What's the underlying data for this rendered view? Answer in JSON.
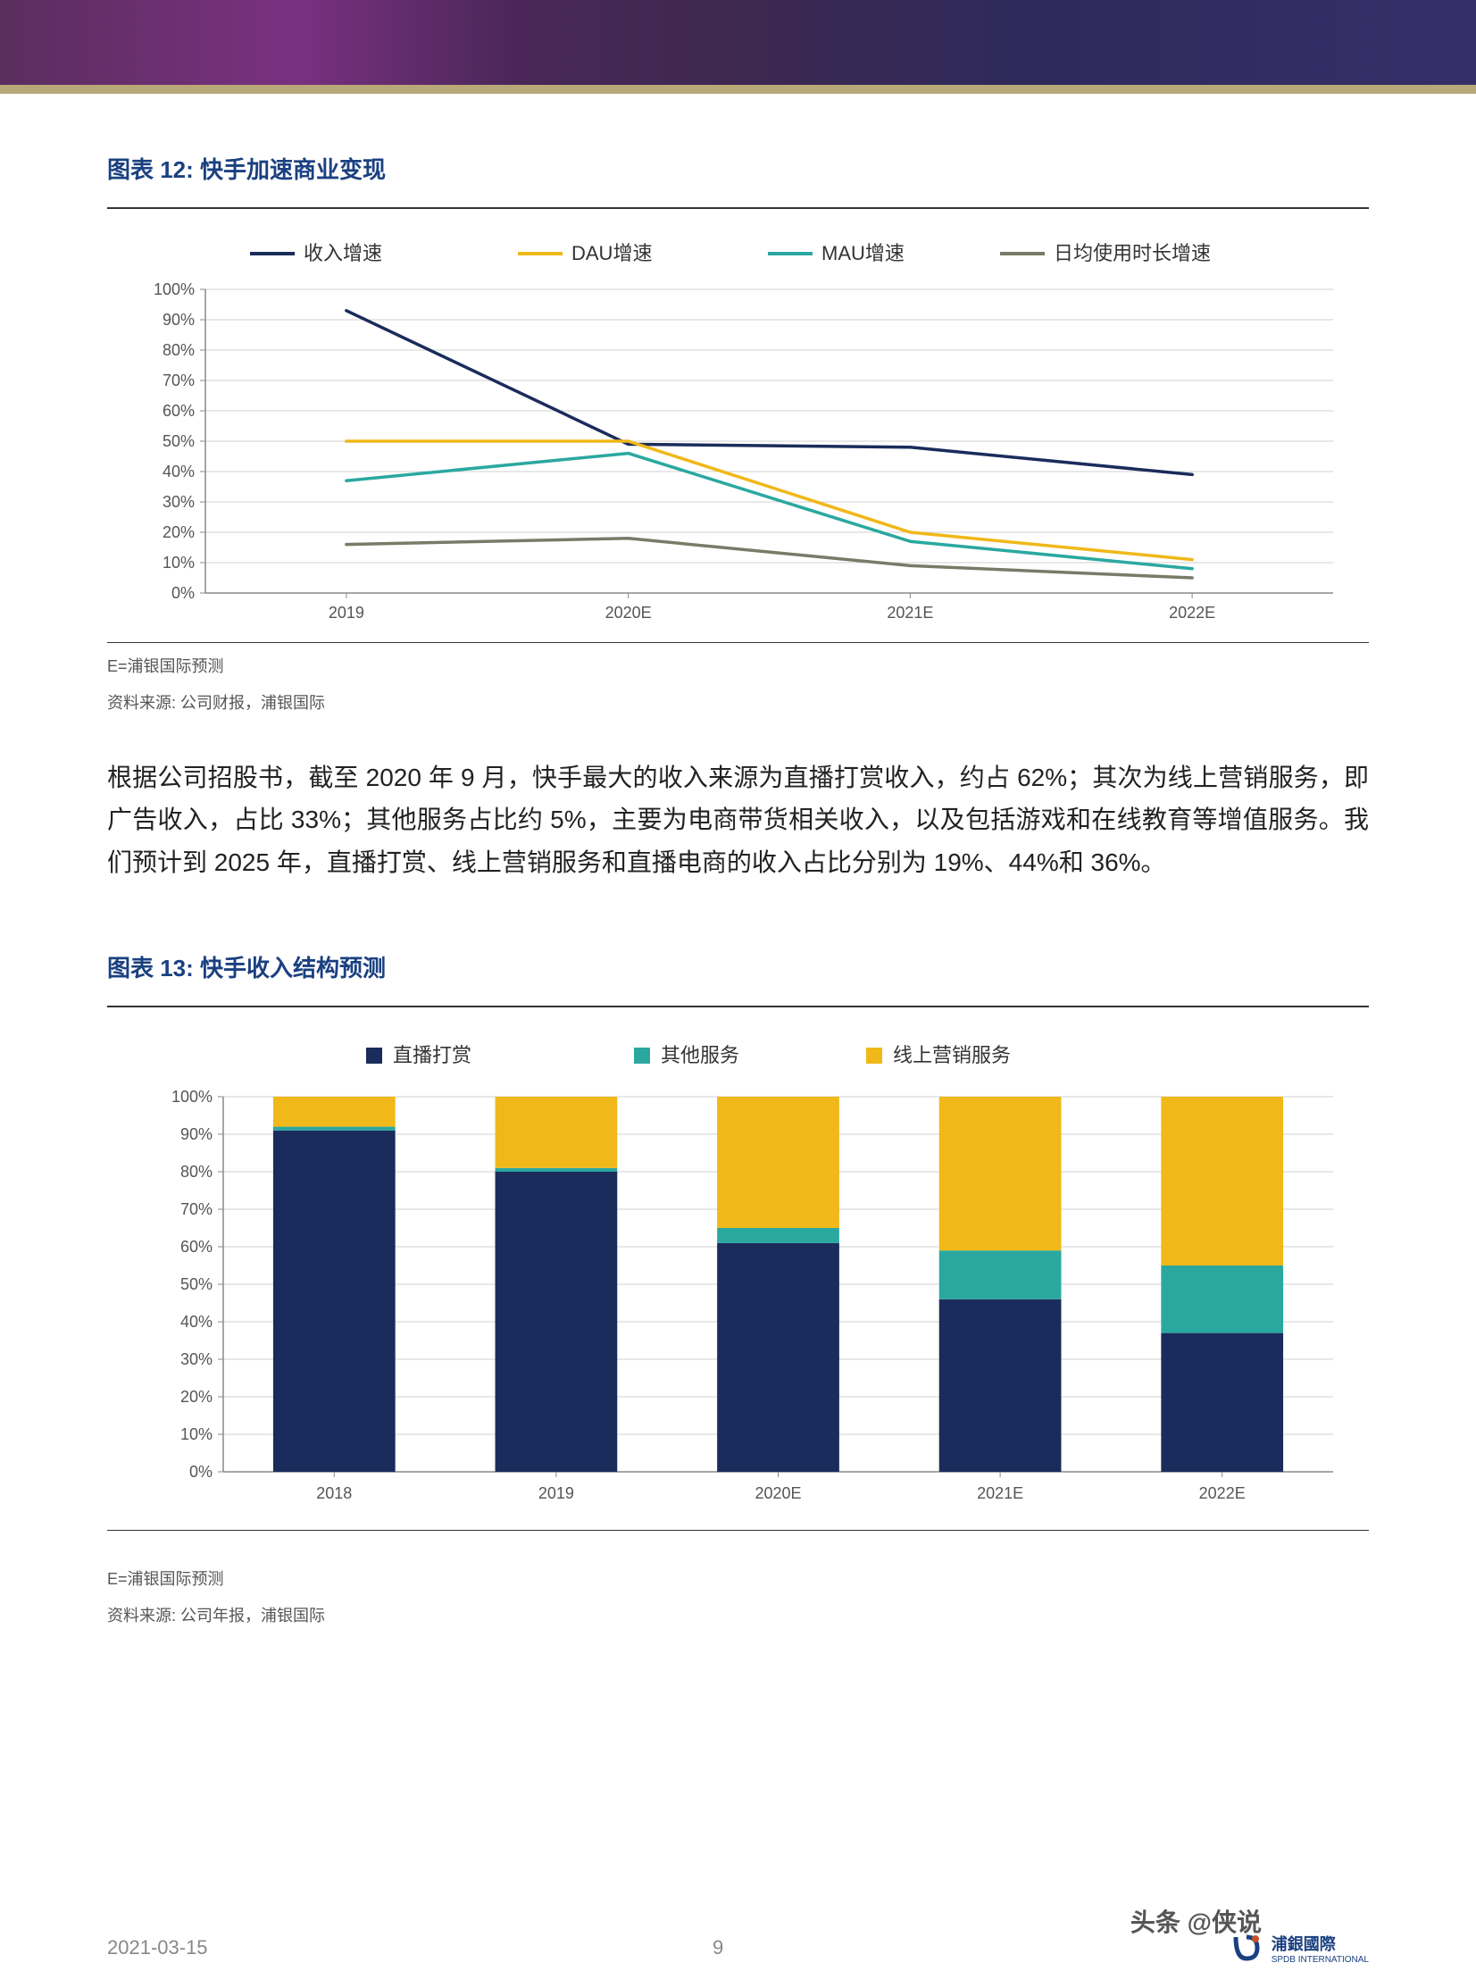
{
  "header": {
    "band_gradient": [
      "#5a2e5e",
      "#7a3080",
      "#4a2758",
      "#3d2850",
      "#2e2a5c",
      "#352f68"
    ],
    "underline_color": "#b8a878"
  },
  "chart12": {
    "title": "图表 12: 快手加速商业变现",
    "type": "line",
    "legend": [
      "收入增速",
      "DAU增速",
      "MAU增速",
      "日均使用时长增速"
    ],
    "legend_colors": [
      "#1a2c5b",
      "#f0b818",
      "#2aa8a0",
      "#7a7a68"
    ],
    "categories": [
      "2019",
      "2020E",
      "2021E",
      "2022E"
    ],
    "series": {
      "revenue": [
        93,
        49,
        48,
        39
      ],
      "dau": [
        50,
        50,
        20,
        11
      ],
      "mau": [
        37,
        46,
        17,
        8
      ],
      "duration": [
        16,
        18,
        9,
        5
      ]
    },
    "ylim": [
      0,
      100
    ],
    "ytick_step": 10,
    "ylabel_suffix": "%",
    "grid_color": "#d0d0d0",
    "axis_color": "#888",
    "line_width": 3.5,
    "legend_line_width": 4,
    "background": "#ffffff",
    "title_fontsize": 26,
    "label_fontsize": 18,
    "note1": "E=浦银国际预测",
    "note2": "资料来源: 公司财报，浦银国际"
  },
  "paragraph": "根据公司招股书，截至 2020 年 9 月，快手最大的收入来源为直播打赏收入，约占 62%；其次为线上营销服务，即广告收入，占比 33%；其他服务占比约 5%，主要为电商带货相关收入，以及包括游戏和在线教育等增值服务。我们预计到 2025 年，直播打赏、线上营销服务和直播电商的收入占比分别为 19%、44%和 36%。",
  "chart13": {
    "title": "图表 13: 快手收入结构预测",
    "type": "stacked_bar",
    "legend": [
      "直播打赏",
      "其他服务",
      "线上营销服务"
    ],
    "legend_colors": [
      "#1a2c5b",
      "#2aa8a0",
      "#f0b818"
    ],
    "categories": [
      "2018",
      "2019",
      "2020E",
      "2021E",
      "2022E"
    ],
    "series": {
      "live": [
        91,
        80,
        61,
        46,
        37
      ],
      "other": [
        1,
        1,
        4,
        13,
        18
      ],
      "marketing": [
        8,
        19,
        35,
        41,
        45
      ]
    },
    "ylim": [
      0,
      100
    ],
    "ytick_step": 10,
    "ylabel_suffix": "%",
    "grid_color": "#d0d0d0",
    "axis_color": "#888",
    "bar_width": 0.55,
    "background": "#ffffff",
    "title_fontsize": 26,
    "label_fontsize": 18,
    "note1": "E=浦银国际预测",
    "note2": "资料来源: 公司年报，浦银国际"
  },
  "footer": {
    "date": "2021-03-15",
    "page": "9",
    "watermark": "头条 @侠说",
    "logo_text": "浦銀國際",
    "logo_sub": "SPDB INTERNATIONAL",
    "logo_color": "#1a4080"
  }
}
